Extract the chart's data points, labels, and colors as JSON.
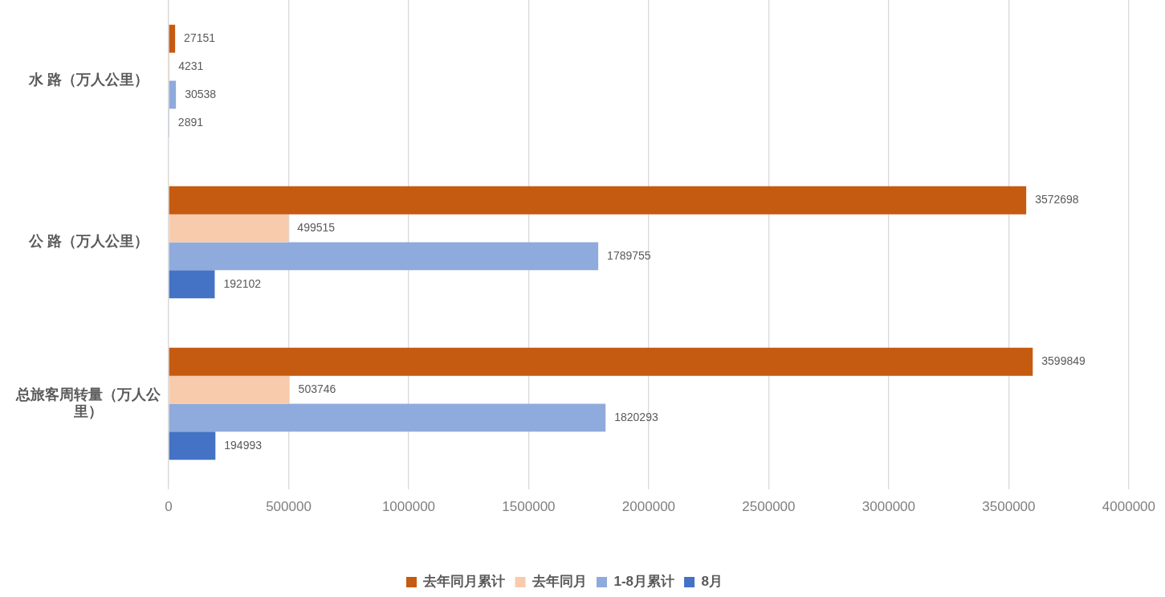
{
  "chart_data": {
    "type": "bar",
    "orientation": "horizontal",
    "categories": [
      "水 路（万人公里）",
      "公 路（万人公里）",
      "总旅客周转量（万人公里）"
    ],
    "series": [
      {
        "name": "去年同月累计",
        "color": "#c55a11",
        "values": [
          27151,
          3572698,
          3599849
        ]
      },
      {
        "name": "去年同月",
        "color": "#f8cbad",
        "values": [
          4231,
          499515,
          503746
        ]
      },
      {
        "name": "1-8月累计",
        "color": "#8faadc",
        "values": [
          30538,
          1789755,
          1820293
        ]
      },
      {
        "name": "8月",
        "color": "#4472c4",
        "values": [
          2891,
          192102,
          194993
        ]
      }
    ],
    "xlim": [
      0,
      4000000
    ],
    "xticks": [
      0,
      500000,
      1000000,
      1500000,
      2000000,
      2500000,
      3000000,
      3500000,
      4000000
    ],
    "grid": "x",
    "legend": "bottom",
    "data_labels": true
  }
}
